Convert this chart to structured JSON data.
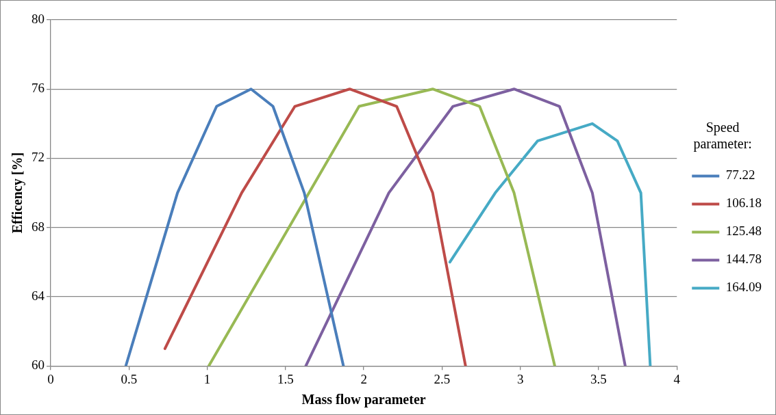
{
  "chart_data": {
    "type": "line",
    "xlabel": "Mass flow parameter",
    "ylabel": "Efficency [%]",
    "legend_title": "Speed parameter:",
    "legend": "right",
    "grid": "y",
    "marker": "none",
    "line_style": "solid",
    "xlim": [
      0,
      4
    ],
    "xticks": [
      0,
      0.5,
      1,
      1.5,
      2,
      2.5,
      3,
      3.5,
      4
    ],
    "ylim": [
      60,
      80
    ],
    "yticks": [
      60,
      64,
      68,
      72,
      76,
      80
    ],
    "series": [
      {
        "name": "77.22",
        "color": "#4a7ebb",
        "x": [
          0.48,
          0.81,
          1.06,
          1.28,
          1.42,
          1.62,
          1.87
        ],
        "values": [
          60,
          70,
          75,
          76,
          75,
          70,
          60
        ]
      },
      {
        "name": "106.18",
        "color": "#be4b48",
        "x": [
          0.73,
          1.22,
          1.56,
          1.91,
          2.21,
          2.44,
          2.65
        ],
        "values": [
          61,
          70,
          75,
          76,
          75,
          70,
          60
        ]
      },
      {
        "name": "125.48",
        "color": "#98b954",
        "x": [
          1.01,
          1.97,
          2.44,
          2.74,
          2.96,
          3.22
        ],
        "values": [
          60,
          75,
          76,
          75,
          70,
          60
        ]
      },
      {
        "name": "144.78",
        "color": "#7d60a0",
        "x": [
          1.63,
          2.16,
          2.57,
          2.96,
          3.25,
          3.46,
          3.67
        ],
        "values": [
          60,
          70,
          75,
          76,
          75,
          70,
          60
        ]
      },
      {
        "name": "164.09",
        "color": "#46aac5",
        "x": [
          2.55,
          2.84,
          3.11,
          3.46,
          3.62,
          3.77,
          3.83
        ],
        "values": [
          66,
          70,
          73,
          74,
          73,
          70,
          60
        ]
      }
    ]
  }
}
